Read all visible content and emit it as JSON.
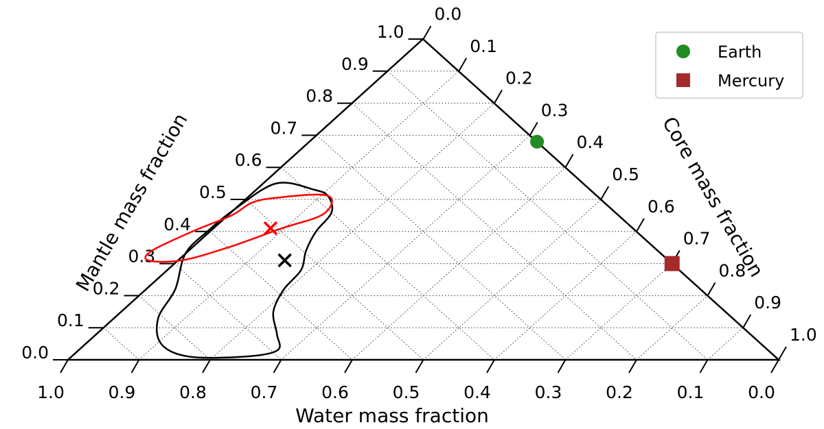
{
  "chart_data": {
    "type": "ternary",
    "axes": {
      "water": {
        "label": "Water mass fraction",
        "ticks": [
          "1.0",
          "0.9",
          "0.8",
          "0.7",
          "0.6",
          "0.5",
          "0.4",
          "0.3",
          "0.2",
          "0.1",
          "0.0"
        ]
      },
      "mantle": {
        "label": "Mantle mass fraction",
        "ticks": [
          "0.0",
          "0.1",
          "0.2",
          "0.3",
          "0.4",
          "0.5",
          "0.6",
          "0.7",
          "0.8",
          "0.9",
          "1.0"
        ]
      },
      "core": {
        "label": "Core mass fraction",
        "ticks": [
          "0.0",
          "0.1",
          "0.2",
          "0.3",
          "0.4",
          "0.5",
          "0.6",
          "0.7",
          "0.8",
          "0.9",
          "1.0"
        ]
      }
    },
    "grid": true,
    "legend": {
      "position": "top-right",
      "entries": [
        {
          "name": "Earth",
          "marker": "circle",
          "color": "#228b22"
        },
        {
          "name": "Mercury",
          "marker": "square",
          "color": "#a52a2a"
        }
      ]
    },
    "points": [
      {
        "name": "Earth",
        "core": 0.32,
        "mantle": 0.68,
        "water": 0.0,
        "color": "#228b22",
        "marker": "circle"
      },
      {
        "name": "Mercury",
        "core": 0.7,
        "mantle": 0.3,
        "water": 0.0,
        "color": "#a52a2a",
        "marker": "square"
      },
      {
        "name": "black best-fit",
        "core": 0.15,
        "mantle": 0.31,
        "water": 0.54,
        "color": "#000000",
        "marker": "x"
      },
      {
        "name": "red best-fit",
        "core": 0.08,
        "mantle": 0.41,
        "water": 0.51,
        "color": "#ff0000",
        "marker": "x"
      }
    ],
    "contours": [
      {
        "color": "#000000",
        "points": [
          [
            0.018,
            0.55
          ],
          [
            0.082,
            0.53
          ],
          [
            0.111,
            0.51
          ],
          [
            0.141,
            0.46
          ],
          [
            0.149,
            0.4
          ],
          [
            0.165,
            0.34
          ],
          [
            0.188,
            0.28
          ],
          [
            0.194,
            0.22
          ],
          [
            0.214,
            0.15
          ],
          [
            0.254,
            0.08
          ],
          [
            0.28,
            0.03
          ],
          [
            0.245,
            0.01
          ],
          [
            0.165,
            0.01
          ],
          [
            0.106,
            0.05
          ],
          [
            0.062,
            0.13
          ],
          [
            0.041,
            0.22
          ],
          [
            0.0,
            0.33
          ],
          [
            -0.004,
            0.4
          ],
          [
            0.0,
            0.47
          ]
        ]
      },
      {
        "color": "#ff0000",
        "points": [
          [
            0.04,
            0.505
          ],
          [
            0.098,
            0.515
          ],
          [
            0.124,
            0.495
          ],
          [
            0.131,
            0.45
          ],
          [
            0.096,
            0.41
          ],
          [
            0.05,
            0.35
          ],
          [
            0.005,
            0.31
          ],
          [
            -0.042,
            0.31
          ],
          [
            -0.052,
            0.34
          ],
          [
            -0.025,
            0.4
          ],
          [
            0.005,
            0.45
          ],
          [
            0.014,
            0.49
          ]
        ]
      }
    ]
  }
}
